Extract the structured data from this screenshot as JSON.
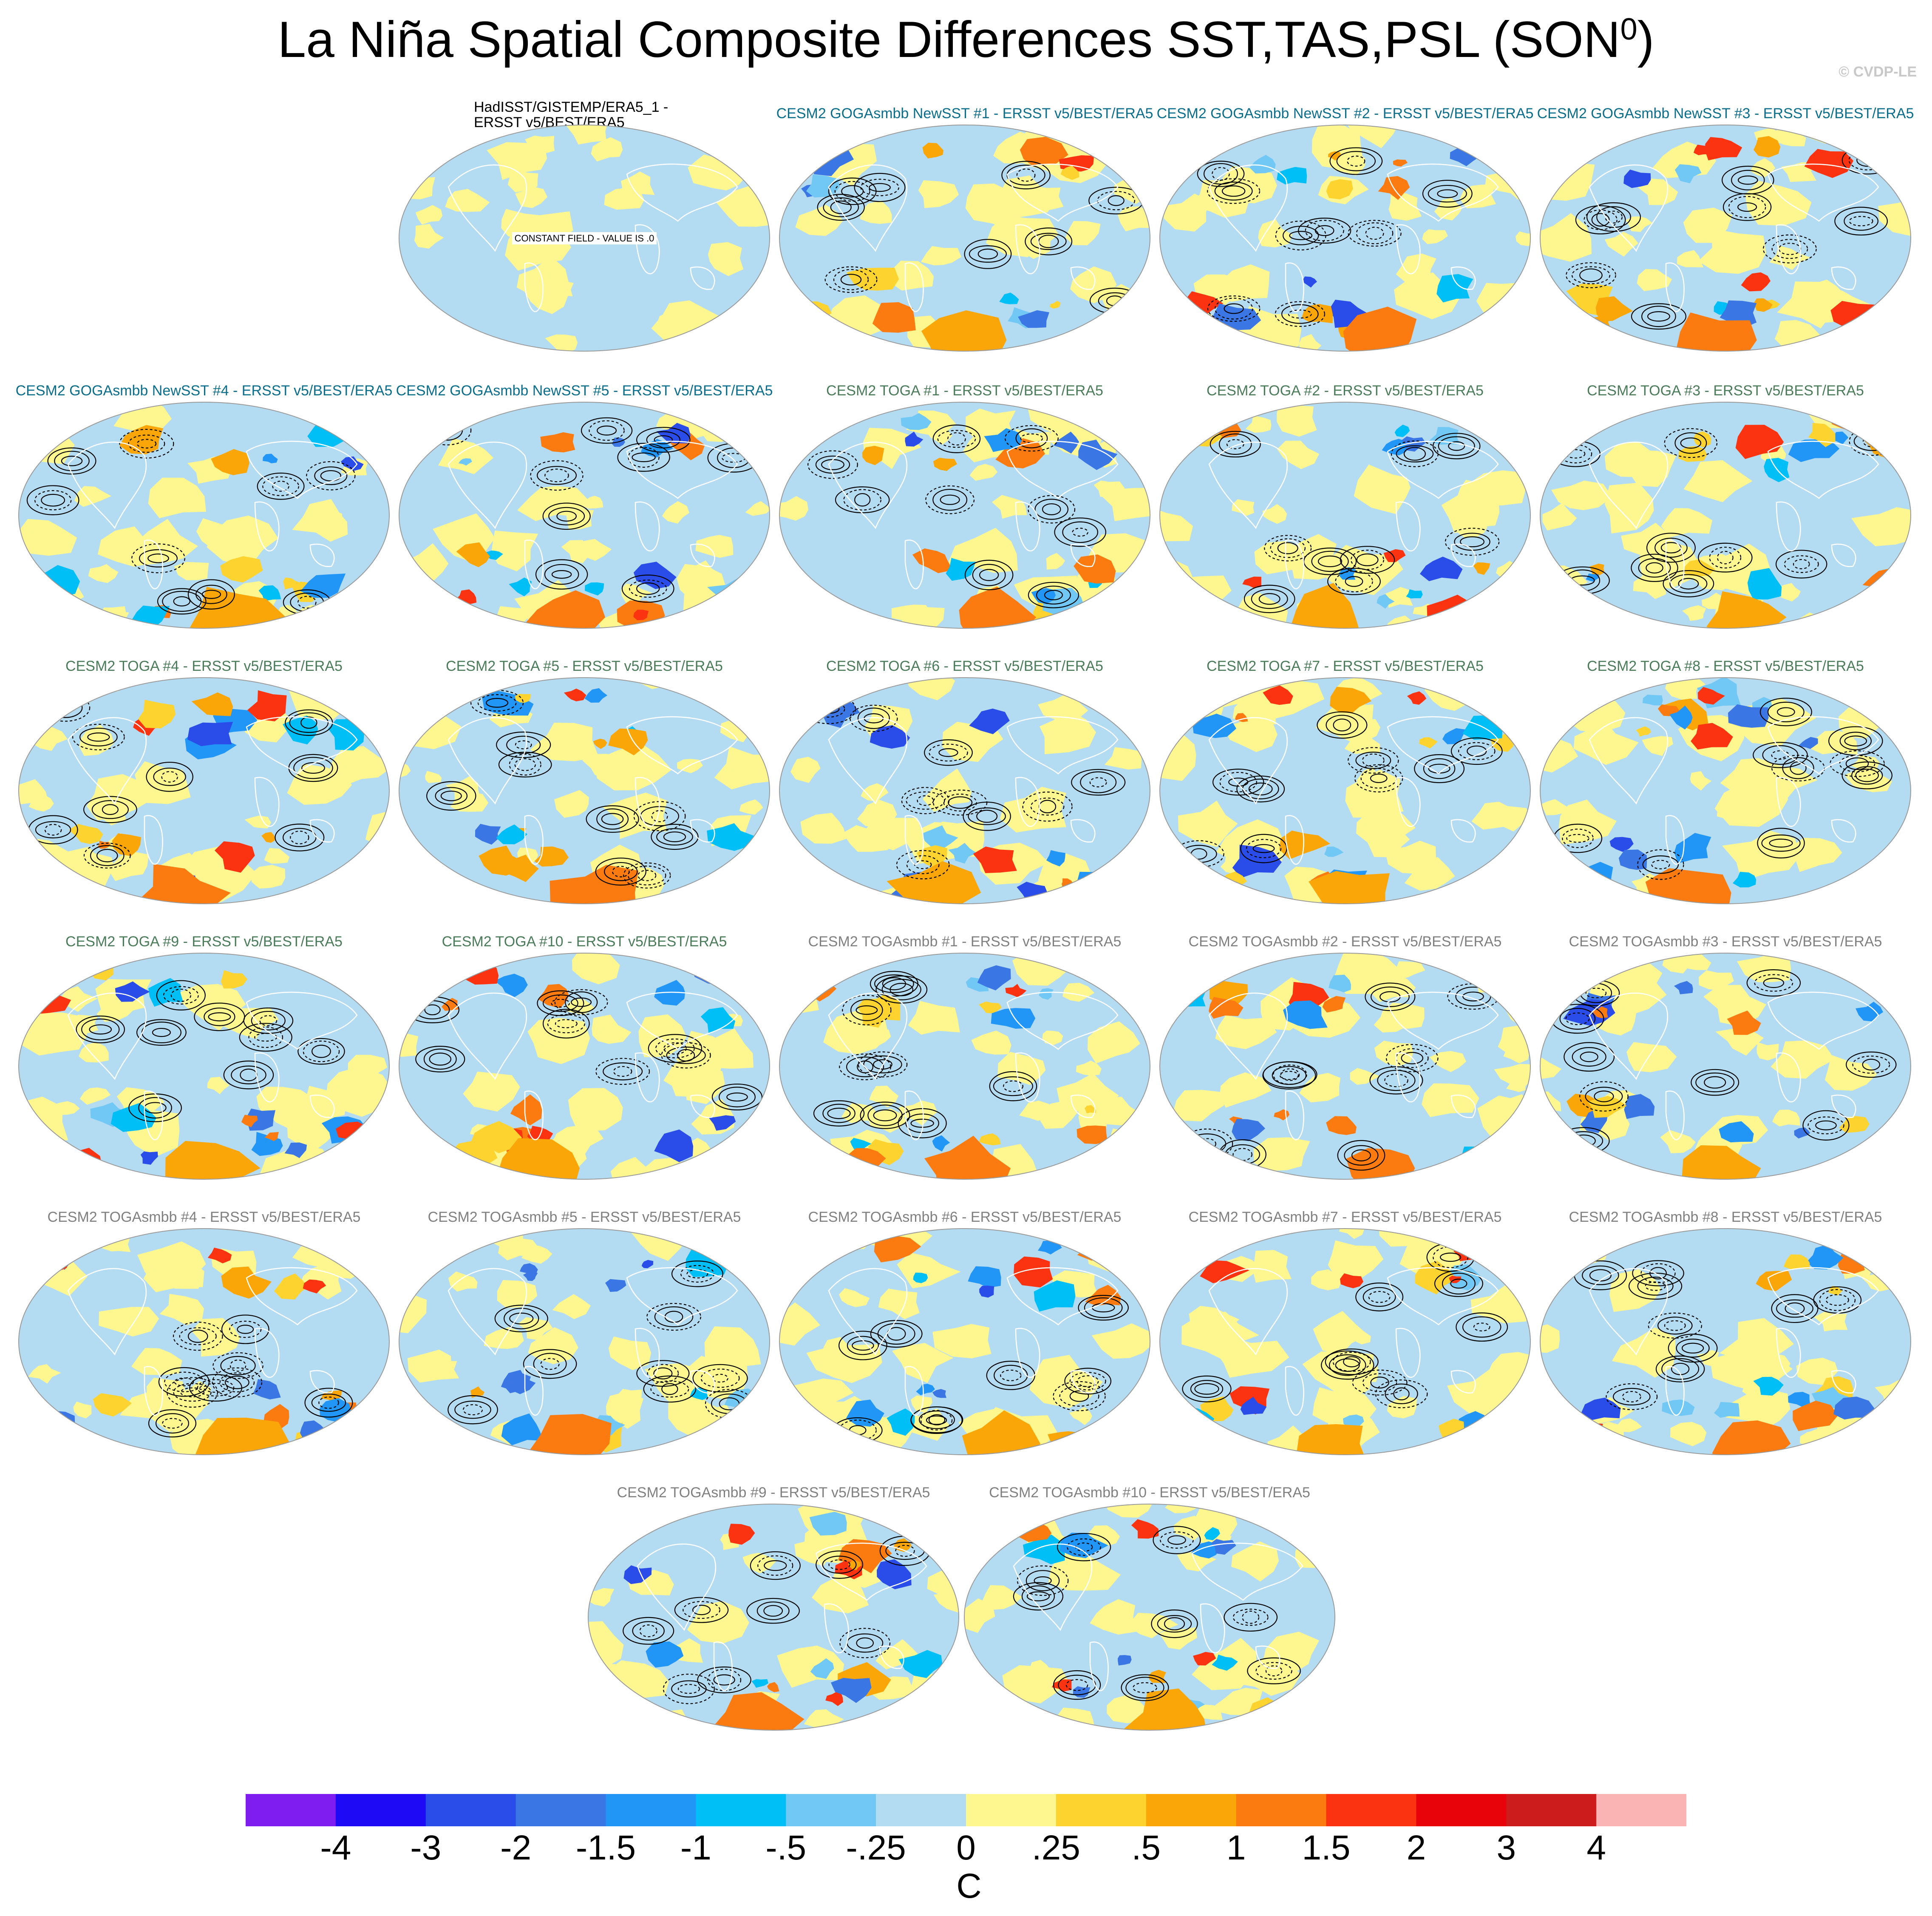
{
  "title_main": "La Niña Spatial Composite Differences SST,TAS,PSL (SON",
  "title_sup": "0",
  "title_close": ")",
  "credit": "© CVDP-LE",
  "colors": {
    "ocean_base": "#b3dcf2",
    "land_base": "#fef68f",
    "teal_title": "#0a6e8c",
    "green_title": "#4a7c59",
    "gray_title": "#808080",
    "coast": "#ffffff",
    "contour": "#000000"
  },
  "panels": [
    {
      "title": "HadISST/GISTEMP/ERA5_1 - ERSST v5/BEST/ERA5",
      "note": "CONSTANT FIELD - VALUE IS .0",
      "color": "#000000"
    },
    {
      "title": "CESM2 GOGAsmbb NewSST #1 - ERSST v5/BEST/ERA5",
      "color": "#0a6e8c"
    },
    {
      "title": "CESM2 GOGAsmbb NewSST #2 - ERSST v5/BEST/ERA5",
      "color": "#0a6e8c"
    },
    {
      "title": "CESM2 GOGAsmbb NewSST #3 - ERSST v5/BEST/ERA5",
      "color": "#0a6e8c"
    },
    {
      "title": "CESM2 GOGAsmbb NewSST #4 - ERSST v5/BEST/ERA5",
      "color": "#0a6e8c"
    },
    {
      "title": "CESM2 GOGAsmbb NewSST #5 - ERSST v5/BEST/ERA5",
      "color": "#0a6e8c"
    },
    {
      "title": "CESM2 TOGA #1 - ERSST v5/BEST/ERA5",
      "color": "#4a7c59"
    },
    {
      "title": "CESM2 TOGA #2 - ERSST v5/BEST/ERA5",
      "color": "#4a7c59"
    },
    {
      "title": "CESM2 TOGA #3 - ERSST v5/BEST/ERA5",
      "color": "#4a7c59"
    },
    {
      "title": "CESM2 TOGA #4 - ERSST v5/BEST/ERA5",
      "color": "#4a7c59"
    },
    {
      "title": "CESM2 TOGA #5 - ERSST v5/BEST/ERA5",
      "color": "#4a7c59"
    },
    {
      "title": "CESM2 TOGA #6 - ERSST v5/BEST/ERA5",
      "color": "#4a7c59"
    },
    {
      "title": "CESM2 TOGA #7 - ERSST v5/BEST/ERA5",
      "color": "#4a7c59"
    },
    {
      "title": "CESM2 TOGA #8 - ERSST v5/BEST/ERA5",
      "color": "#4a7c59"
    },
    {
      "title": "CESM2 TOGA #9 - ERSST v5/BEST/ERA5",
      "color": "#4a7c59"
    },
    {
      "title": "CESM2 TOGA #10 - ERSST v5/BEST/ERA5",
      "color": "#4a7c59"
    },
    {
      "title": "CESM2 TOGAsmbb #1 - ERSST v5/BEST/ERA5",
      "color": "#808080"
    },
    {
      "title": "CESM2 TOGAsmbb #2 - ERSST v5/BEST/ERA5",
      "color": "#808080"
    },
    {
      "title": "CESM2 TOGAsmbb #3 - ERSST v5/BEST/ERA5",
      "color": "#808080"
    },
    {
      "title": "CESM2 TOGAsmbb #4 - ERSST v5/BEST/ERA5",
      "color": "#808080"
    },
    {
      "title": "CESM2 TOGAsmbb #5 - ERSST v5/BEST/ERA5",
      "color": "#808080"
    },
    {
      "title": "CESM2 TOGAsmbb #6 - ERSST v5/BEST/ERA5",
      "color": "#808080"
    },
    {
      "title": "CESM2 TOGAsmbb #7 - ERSST v5/BEST/ERA5",
      "color": "#808080"
    },
    {
      "title": "CESM2 TOGAsmbb #8 - ERSST v5/BEST/ERA5",
      "color": "#808080"
    },
    {
      "title": "CESM2 TOGAsmbb #9 - ERSST v5/BEST/ERA5",
      "color": "#808080"
    },
    {
      "title": "CESM2 TOGAsmbb #10 - ERSST v5/BEST/ERA5",
      "color": "#808080"
    }
  ],
  "colorbar": {
    "colors": [
      "#7f1cf0",
      "#1f0af5",
      "#2a4ce8",
      "#3a76e4",
      "#2196f7",
      "#00bff6",
      "#72c8f4",
      "#b3dcf2",
      "#fef68f",
      "#fdd330",
      "#fba608",
      "#fb7b10",
      "#fb3310",
      "#e8030a",
      "#cc1c1c",
      "#fbb4b4"
    ],
    "ticks": [
      "-4",
      "-3",
      "-2",
      "-1.5",
      "-1",
      "-.5",
      "-.25",
      "0",
      ".25",
      ".5",
      "1",
      "1.5",
      "2",
      "3",
      "4"
    ],
    "unit": "C"
  }
}
